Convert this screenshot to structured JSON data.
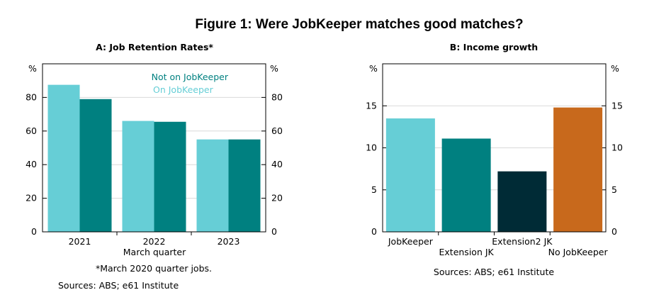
{
  "figure": {
    "title": "Figure 1: Were JobKeeper matches good matches?"
  },
  "colors": {
    "light_teal": "#66CED6",
    "teal": "#008080",
    "dark": "#002B36",
    "orange": "#C8691C"
  },
  "chart_data": [
    {
      "type": "bar",
      "title": "A: Job Retention Rates*",
      "ylabel_left": "%",
      "ylabel_right": "%",
      "xlabel": "March quarter",
      "categories": [
        "2021",
        "2022",
        "2023"
      ],
      "series": [
        {
          "name": "On JobKeeper",
          "color": "#66CED6",
          "values": [
            87.5,
            66,
            55
          ]
        },
        {
          "name": "Not on JobKeeper",
          "color": "#008080",
          "values": [
            79,
            65.5,
            55
          ]
        }
      ],
      "ylim": [
        0,
        100
      ],
      "yticks": [
        "0",
        "20",
        "40",
        "60",
        "80"
      ],
      "legend_position": "top-right",
      "grid": true,
      "footnote": "*March 2020 quarter jobs.",
      "source": "Sources: ABS; e61 Institute"
    },
    {
      "type": "bar",
      "title": "B: Income growth",
      "ylabel_left": "%",
      "ylabel_right": "%",
      "categories": [
        "JobKeeper",
        "Extension JK",
        "Extension2 JK",
        "No JobKeeper"
      ],
      "values": [
        13.5,
        11.1,
        7.2,
        14.8
      ],
      "colors": [
        "#66CED6",
        "#008080",
        "#002B36",
        "#C8691C"
      ],
      "ylim": [
        0,
        20
      ],
      "yticks": [
        "0",
        "5",
        "10",
        "15"
      ],
      "grid": true,
      "source": "Sources: ABS; e61 Institute"
    }
  ]
}
